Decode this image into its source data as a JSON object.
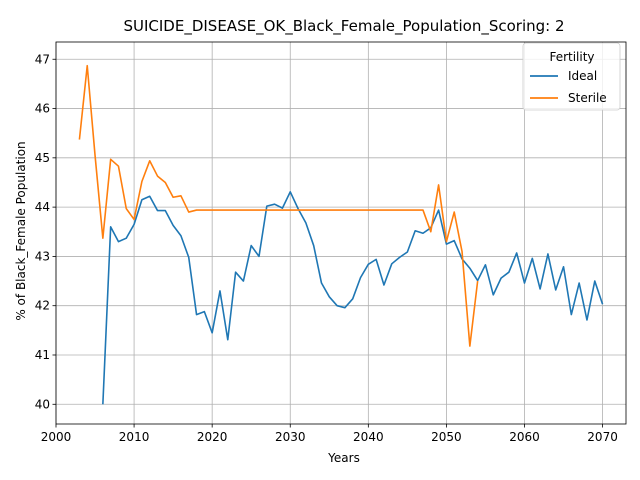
{
  "chart_data": {
    "type": "line",
    "title": "SUICIDE_DISEASE_OK_Black_Female_Population_Scoring: 2",
    "xlabel": "Years",
    "ylabel": "% of Black_Female Population",
    "xlim": [
      2000,
      2073
    ],
    "ylim": [
      39.6,
      47.35
    ],
    "xticks": [
      2000,
      2010,
      2020,
      2030,
      2040,
      2050,
      2060,
      2070
    ],
    "yticks": [
      40,
      41,
      42,
      43,
      44,
      45,
      46,
      47
    ],
    "grid": true,
    "legend": {
      "title": "Fertility",
      "placement": "top-right"
    },
    "colors": {
      "Ideal": "#1f77b4",
      "Sterile": "#ff7f0e"
    },
    "series": [
      {
        "name": "Ideal",
        "x": [
          2006,
          2007,
          2008,
          2009,
          2010,
          2011,
          2012,
          2013,
          2014,
          2015,
          2016,
          2017,
          2018,
          2019,
          2020,
          2021,
          2022,
          2023,
          2024,
          2025,
          2026,
          2027,
          2028,
          2029,
          2030,
          2031,
          2032,
          2033,
          2034,
          2035,
          2036,
          2037,
          2038,
          2039,
          2040,
          2041,
          2042,
          2043,
          2044,
          2045,
          2046,
          2047,
          2048,
          2049,
          2050,
          2051,
          2052,
          2053,
          2054,
          2055,
          2056,
          2057,
          2058,
          2059,
          2060,
          2061,
          2062,
          2063,
          2064,
          2065,
          2066,
          2067,
          2068,
          2069,
          2070
        ],
        "values": [
          40.0,
          43.6,
          43.3,
          43.37,
          43.65,
          44.15,
          44.22,
          43.93,
          43.93,
          43.63,
          43.42,
          42.98,
          41.82,
          41.88,
          41.45,
          42.3,
          41.31,
          42.68,
          42.5,
          43.22,
          43.0,
          44.02,
          44.06,
          43.98,
          44.31,
          43.97,
          43.68,
          43.22,
          42.46,
          42.18,
          42.0,
          41.96,
          42.14,
          42.57,
          42.84,
          42.94,
          42.42,
          42.85,
          42.98,
          43.09,
          43.52,
          43.47,
          43.58,
          43.94,
          43.25,
          43.32,
          42.95,
          42.76,
          42.51,
          42.83,
          42.22,
          42.56,
          42.68,
          43.07,
          42.46,
          42.96,
          42.34,
          43.05,
          42.32,
          42.79,
          41.82,
          42.46,
          41.71,
          42.5,
          42.03
        ]
      },
      {
        "name": "Sterile",
        "x": [
          2003,
          2004,
          2005,
          2006,
          2007,
          2008,
          2009,
          2010,
          2011,
          2012,
          2013,
          2014,
          2015,
          2016,
          2017,
          2018,
          2019,
          2020,
          2021,
          2022,
          2023,
          2024,
          2025,
          2026,
          2027,
          2028,
          2029,
          2030,
          2031,
          2032,
          2033,
          2034,
          2035,
          2036,
          2037,
          2038,
          2039,
          2040,
          2041,
          2042,
          2043,
          2044,
          2045,
          2046,
          2047,
          2048,
          2049,
          2050,
          2051,
          2052,
          2053,
          2054
        ],
        "values": [
          45.37,
          46.87,
          45.05,
          43.37,
          44.97,
          44.83,
          43.97,
          43.75,
          44.52,
          44.94,
          44.63,
          44.5,
          44.2,
          44.23,
          43.9,
          43.94,
          43.94,
          43.94,
          43.94,
          43.94,
          43.94,
          43.94,
          43.94,
          43.94,
          43.94,
          43.94,
          43.94,
          43.94,
          43.94,
          43.94,
          43.94,
          43.94,
          43.94,
          43.94,
          43.94,
          43.94,
          43.94,
          43.94,
          43.94,
          43.94,
          43.94,
          43.94,
          43.94,
          43.94,
          43.94,
          43.5,
          44.45,
          43.3,
          43.9,
          43.1,
          41.18,
          42.5
        ]
      }
    ]
  }
}
